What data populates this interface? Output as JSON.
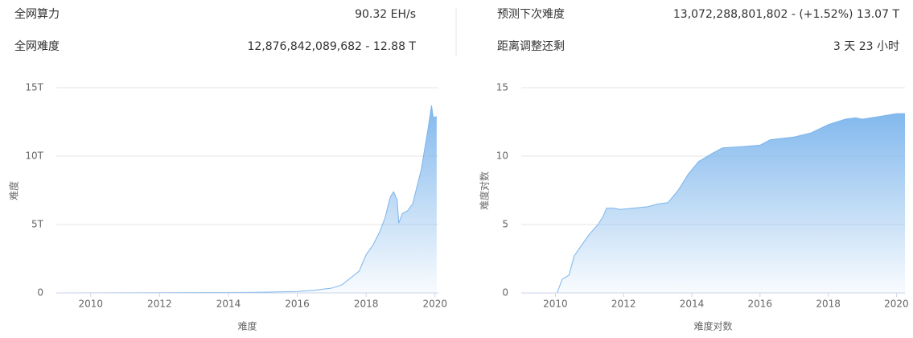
{
  "stats": [
    {
      "label": "全网算力",
      "value": "90.32 EH/s"
    },
    {
      "label": "全网难度",
      "value": "12,876,842,089,682 - 12.88 T"
    },
    {
      "label": "预测下次难度",
      "value": "13,072,288,801,802 - (+1.52%) 13.07 T"
    },
    {
      "label": "距离调整还剩",
      "value": "3 天 23 小时"
    }
  ],
  "chart_data": [
    {
      "type": "area",
      "x_label": "难度",
      "y_label": "难度",
      "color": "#7cb5ec",
      "grid": true,
      "xlim": [
        2009,
        2020.1
      ],
      "ylim": [
        0,
        15
      ],
      "xticks": [
        2010,
        2012,
        2014,
        2016,
        2018,
        2020
      ],
      "yticks": [
        0,
        {
          "value": 5,
          "label": "5T"
        },
        {
          "value": 10,
          "label": "10T"
        },
        {
          "value": 15,
          "label": "15T"
        }
      ],
      "x": [
        2009,
        2014,
        2015,
        2016,
        2016.5,
        2017,
        2017.3,
        2017.6,
        2017.8,
        2018.0,
        2018.2,
        2018.4,
        2018.55,
        2018.7,
        2018.8,
        2018.9,
        2018.95,
        2019.05,
        2019.2,
        2019.35,
        2019.5,
        2019.6,
        2019.7,
        2019.8,
        2019.9,
        2019.95,
        2020.05
      ],
      "values": [
        0,
        0.03,
        0.05,
        0.1,
        0.2,
        0.35,
        0.6,
        1.2,
        1.6,
        2.8,
        3.5,
        4.5,
        5.5,
        7.0,
        7.4,
        6.8,
        5.1,
        5.8,
        6.0,
        6.5,
        8.0,
        9.0,
        10.5,
        12.0,
        13.7,
        12.8,
        12.9
      ]
    },
    {
      "type": "area",
      "x_label": "难度对数",
      "y_label": "难度对数",
      "color": "#7cb5ec",
      "grid": true,
      "xlim": [
        2009,
        2020.25
      ],
      "ylim": [
        0,
        15
      ],
      "xticks": [
        2010,
        2012,
        2014,
        2016,
        2018,
        2020
      ],
      "yticks": [
        0,
        5,
        10,
        15
      ],
      "x": [
        2009,
        2010.05,
        2010.2,
        2010.4,
        2010.55,
        2010.8,
        2011.0,
        2011.25,
        2011.4,
        2011.5,
        2011.7,
        2011.9,
        2012.3,
        2012.7,
        2013.0,
        2013.3,
        2013.6,
        2013.9,
        2014.2,
        2014.6,
        2014.9,
        2015.5,
        2016.0,
        2016.3,
        2017.0,
        2017.5,
        2018.0,
        2018.5,
        2018.8,
        2019.0,
        2019.5,
        2020.0,
        2020.25
      ],
      "values": [
        0,
        0,
        1.0,
        1.3,
        2.7,
        3.6,
        4.3,
        5.0,
        5.6,
        6.2,
        6.2,
        6.1,
        6.2,
        6.3,
        6.5,
        6.6,
        7.5,
        8.7,
        9.6,
        10.2,
        10.6,
        10.7,
        10.8,
        11.2,
        11.4,
        11.7,
        12.3,
        12.7,
        12.8,
        12.7,
        12.9,
        13.1,
        13.1
      ]
    }
  ]
}
